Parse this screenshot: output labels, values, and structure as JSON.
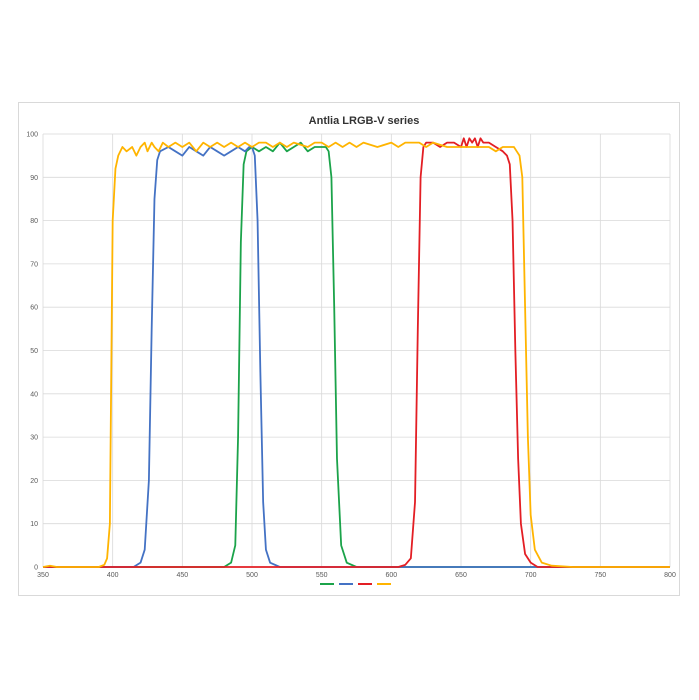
{
  "chart_data": {
    "type": "line",
    "title": "Antlia LRGB-V series",
    "xlabel": "",
    "ylabel": "",
    "xlim": [
      350,
      800
    ],
    "ylim": [
      0,
      100
    ],
    "x_ticks": [
      "350",
      "400",
      "450",
      "500",
      "550",
      "600",
      "650",
      "700",
      "750",
      "800"
    ],
    "y_ticks": [
      "0",
      "10",
      "20",
      "30",
      "40",
      "50",
      "60",
      "70",
      "80",
      "90",
      "100"
    ],
    "grid": true,
    "legend_position": "bottom",
    "series": [
      {
        "color": "#1ba34a",
        "points": [
          [
            350,
            0
          ],
          [
            480,
            0
          ],
          [
            485,
            1
          ],
          [
            488,
            5
          ],
          [
            490,
            30
          ],
          [
            492,
            75
          ],
          [
            494,
            93
          ],
          [
            496,
            96
          ],
          [
            500,
            97
          ],
          [
            505,
            96
          ],
          [
            510,
            97
          ],
          [
            515,
            96
          ],
          [
            520,
            98
          ],
          [
            525,
            96
          ],
          [
            530,
            97
          ],
          [
            535,
            98
          ],
          [
            540,
            96
          ],
          [
            545,
            97
          ],
          [
            550,
            97
          ],
          [
            553,
            97
          ],
          [
            555,
            96
          ],
          [
            557,
            90
          ],
          [
            559,
            60
          ],
          [
            561,
            25
          ],
          [
            564,
            5
          ],
          [
            568,
            1
          ],
          [
            575,
            0
          ],
          [
            800,
            0
          ]
        ]
      },
      {
        "color": "#4472c4",
        "points": [
          [
            350,
            0
          ],
          [
            415,
            0
          ],
          [
            420,
            1
          ],
          [
            423,
            4
          ],
          [
            426,
            20
          ],
          [
            428,
            55
          ],
          [
            430,
            85
          ],
          [
            432,
            94
          ],
          [
            434,
            96
          ],
          [
            440,
            97
          ],
          [
            445,
            96
          ],
          [
            450,
            95
          ],
          [
            455,
            97
          ],
          [
            460,
            96
          ],
          [
            465,
            95
          ],
          [
            470,
            97
          ],
          [
            475,
            96
          ],
          [
            480,
            95
          ],
          [
            485,
            96
          ],
          [
            490,
            97
          ],
          [
            495,
            96
          ],
          [
            498,
            97
          ],
          [
            500,
            97
          ],
          [
            502,
            95
          ],
          [
            504,
            80
          ],
          [
            506,
            45
          ],
          [
            508,
            15
          ],
          [
            510,
            4
          ],
          [
            513,
            1
          ],
          [
            520,
            0
          ],
          [
            800,
            0
          ]
        ]
      },
      {
        "color": "#e31e24",
        "points": [
          [
            350,
            0
          ],
          [
            605,
            0
          ],
          [
            610,
            0.5
          ],
          [
            614,
            2
          ],
          [
            617,
            15
          ],
          [
            619,
            55
          ],
          [
            621,
            90
          ],
          [
            623,
            97
          ],
          [
            625,
            98
          ],
          [
            630,
            98
          ],
          [
            635,
            97
          ],
          [
            640,
            98
          ],
          [
            645,
            98
          ],
          [
            650,
            97
          ],
          [
            652,
            99
          ],
          [
            654,
            97
          ],
          [
            656,
            99
          ],
          [
            658,
            98
          ],
          [
            660,
            99
          ],
          [
            662,
            97
          ],
          [
            664,
            99
          ],
          [
            666,
            98
          ],
          [
            668,
            98
          ],
          [
            670,
            98
          ],
          [
            675,
            97
          ],
          [
            680,
            96
          ],
          [
            683,
            95
          ],
          [
            685,
            93
          ],
          [
            687,
            80
          ],
          [
            689,
            50
          ],
          [
            691,
            25
          ],
          [
            693,
            10
          ],
          [
            696,
            3
          ],
          [
            700,
            1
          ],
          [
            705,
            0
          ],
          [
            800,
            0
          ]
        ]
      },
      {
        "color": "#ffb400",
        "points": [
          [
            350,
            0
          ],
          [
            355,
            0.3
          ],
          [
            360,
            0
          ],
          [
            370,
            0
          ],
          [
            390,
            0
          ],
          [
            394,
            0.5
          ],
          [
            396,
            2
          ],
          [
            398,
            10
          ],
          [
            399,
            45
          ],
          [
            400,
            80
          ],
          [
            402,
            92
          ],
          [
            404,
            95
          ],
          [
            407,
            97
          ],
          [
            410,
            96
          ],
          [
            414,
            97
          ],
          [
            417,
            95
          ],
          [
            420,
            97
          ],
          [
            423,
            98
          ],
          [
            425,
            96
          ],
          [
            428,
            98
          ],
          [
            430,
            97
          ],
          [
            433,
            96
          ],
          [
            436,
            98
          ],
          [
            440,
            97
          ],
          [
            445,
            98
          ],
          [
            450,
            97
          ],
          [
            455,
            98
          ],
          [
            460,
            96
          ],
          [
            465,
            98
          ],
          [
            470,
            97
          ],
          [
            475,
            98
          ],
          [
            480,
            97
          ],
          [
            485,
            98
          ],
          [
            490,
            97
          ],
          [
            495,
            98
          ],
          [
            500,
            97
          ],
          [
            505,
            98
          ],
          [
            510,
            98
          ],
          [
            515,
            97
          ],
          [
            520,
            98
          ],
          [
            525,
            97
          ],
          [
            530,
            98
          ],
          [
            540,
            97
          ],
          [
            545,
            98
          ],
          [
            550,
            98
          ],
          [
            555,
            97
          ],
          [
            560,
            98
          ],
          [
            565,
            97
          ],
          [
            570,
            98
          ],
          [
            575,
            97
          ],
          [
            580,
            98
          ],
          [
            590,
            97
          ],
          [
            600,
            98
          ],
          [
            605,
            97
          ],
          [
            610,
            98
          ],
          [
            620,
            98
          ],
          [
            625,
            97
          ],
          [
            630,
            98
          ],
          [
            640,
            97
          ],
          [
            650,
            97
          ],
          [
            660,
            97
          ],
          [
            670,
            97
          ],
          [
            675,
            96
          ],
          [
            680,
            97
          ],
          [
            685,
            97
          ],
          [
            688,
            97
          ],
          [
            690,
            96
          ],
          [
            692,
            95
          ],
          [
            694,
            90
          ],
          [
            696,
            60
          ],
          [
            698,
            30
          ],
          [
            700,
            12
          ],
          [
            703,
            4
          ],
          [
            708,
            1
          ],
          [
            715,
            0.3
          ],
          [
            730,
            0
          ],
          [
            800,
            0
          ]
        ]
      }
    ]
  }
}
